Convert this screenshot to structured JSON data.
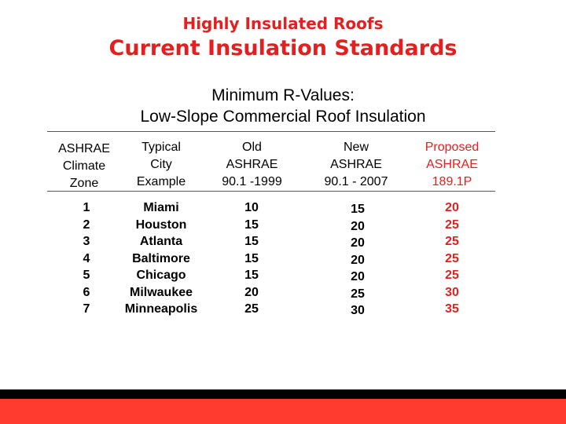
{
  "title": "Highly Insulated Roofs",
  "subtitle": "Current Insulation Standards",
  "heading_line1": "Minimum R-Values:",
  "heading_line2": "Low-Slope Commercial Roof Insulation",
  "colors": {
    "accent_red": "#e41f1f",
    "footer_red": "#ff3b30",
    "footer_black": "#000000"
  },
  "table": {
    "headers": [
      [
        "ASHRAE",
        "Climate",
        "Zone"
      ],
      [
        "Typical",
        "City",
        "Example"
      ],
      [
        "Old",
        "ASHRAE",
        "90.1 -1999"
      ],
      [
        "New",
        "ASHRAE",
        "90.1 - 2007"
      ],
      [
        "Proposed",
        "ASHRAE",
        "189.1P"
      ]
    ],
    "zones": [
      "1",
      "2",
      "3",
      "4",
      "5",
      "6",
      "7"
    ],
    "cities": [
      "Miami",
      "Houston",
      "Atlanta",
      "Baltimore",
      "Chicago",
      "Milwaukee",
      "Minneapolis"
    ],
    "old_1999": [
      "10",
      "15",
      "15",
      "15",
      "15",
      "20",
      "25"
    ],
    "new_2007": [
      "15",
      "20",
      "20",
      "20",
      "20",
      "25",
      "30"
    ],
    "proposed_189": [
      "20",
      "25",
      "25",
      "25",
      "25",
      "30",
      "35"
    ]
  }
}
